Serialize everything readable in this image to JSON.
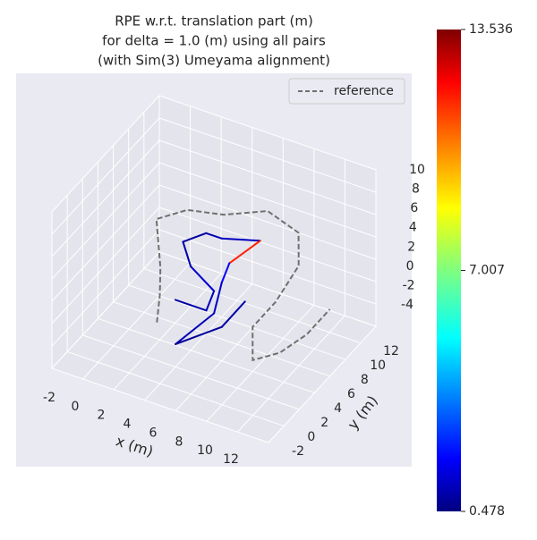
{
  "chart_data": {
    "type": "line3d",
    "title": [
      "RPE w.r.t. translation part (m)",
      "for delta = 1.0 (m) using all pairs",
      "(with Sim(3) Umeyama alignment)"
    ],
    "xlabel": "x (m)",
    "ylabel": "y (m)",
    "xlim": [
      -2,
      12
    ],
    "ylim": [
      -2,
      12
    ],
    "zlim": [
      -4,
      10
    ],
    "xticks": [
      -2,
      0,
      2,
      4,
      6,
      8,
      10,
      12
    ],
    "yticks": [
      -2,
      0,
      2,
      4,
      6,
      8,
      10,
      12
    ],
    "zticks": [
      -4,
      -2,
      0,
      2,
      4,
      6,
      8,
      10
    ],
    "grid": true,
    "legend": "upper right",
    "series": [
      {
        "name": "reference",
        "color": "#707070",
        "dashed": true,
        "x": [
          3.1,
          2,
          0.8,
          -0.6,
          0.5,
          2.5,
          5,
          7,
          8,
          8,
          7.5,
          8.5,
          10,
          11,
          11.5
        ],
        "y": [
          1.4,
          4,
          6.5,
          8.8,
          10.6,
          11.3,
          12,
          12,
          10,
          7,
          5,
          3,
          3.5,
          5,
          7
        ],
        "z": [
          0,
          0,
          0,
          2,
          2,
          2,
          3,
          2,
          1,
          0,
          -1,
          -2,
          -1,
          0,
          1
        ]
      },
      {
        "colormap": "jet",
        "x": [
          4,
          6,
          6,
          4,
          3,
          4,
          5,
          7,
          6,
          6,
          6,
          5,
          7,
          8
        ],
        "y": [
          2,
          2,
          3,
          4,
          5,
          6,
          6,
          7,
          5,
          4,
          3,
          0,
          2,
          3
        ],
        "z": [
          2,
          2,
          3,
          3.5,
          4.5,
          5,
          5,
          5,
          4,
          3,
          1,
          0,
          1,
          3
        ],
        "values": [
          1,
          1.2,
          1.5,
          1,
          0.9,
          1.1,
          1.3,
          11.5,
          2,
          1.4,
          1.2,
          0.8,
          1,
          1.1
        ]
      }
    ],
    "colorbar": {
      "clim": [
        0.478,
        13.536
      ],
      "ticks": [
        0.478,
        7.007,
        13.536
      ]
    }
  }
}
